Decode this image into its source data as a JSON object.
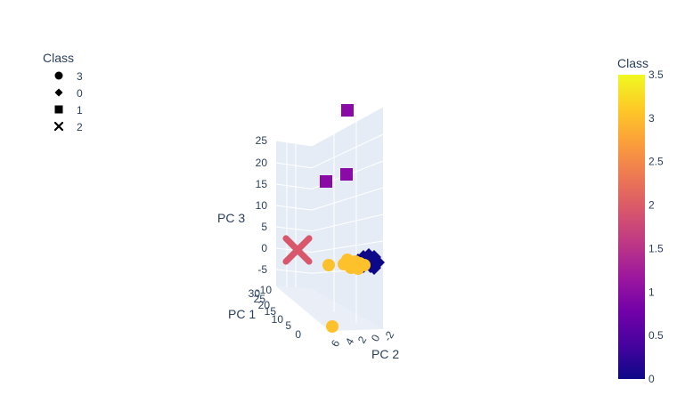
{
  "chart_data": {
    "type": "scatter3d",
    "legend": {
      "title": "Class",
      "placement": "top-left",
      "entries": [
        {
          "label": "3",
          "symbol": "circle"
        },
        {
          "label": "0",
          "symbol": "diamond"
        },
        {
          "label": "1",
          "symbol": "square"
        },
        {
          "label": "2",
          "symbol": "x"
        }
      ]
    },
    "colorbar": {
      "title": "Class",
      "range": [
        0,
        3.5
      ],
      "ticks": [
        "3.5",
        "3",
        "2.5",
        "2",
        "1.5",
        "1",
        "0.5",
        "0"
      ],
      "colors": [
        "#0d0887",
        "#46039f",
        "#7201a8",
        "#9c179e",
        "#bd3786",
        "#d8576b",
        "#ed7953",
        "#fb9f3a",
        "#fdca26",
        "#f0f921"
      ]
    },
    "axes": {
      "x": {
        "title": "PC 1",
        "ticks": [
          "-10",
          "30",
          "25",
          "20",
          "15",
          "10",
          "5",
          "0"
        ]
      },
      "y": {
        "title": "PC 2",
        "ticks": [
          "6",
          "4",
          "2",
          "0",
          "-2"
        ]
      },
      "z": {
        "title": "PC 3",
        "ticks": [
          "25",
          "20",
          "15",
          "10",
          "5",
          "0",
          "-5"
        ]
      }
    },
    "series": [
      {
        "class": 1,
        "symbol": "square",
        "color": "#8a0aa5",
        "points": [
          {
            "z": 27.5
          },
          {
            "z": 16
          },
          {
            "z": 17
          }
        ]
      },
      {
        "class": 2,
        "symbol": "x",
        "color": "#d8576b",
        "points": [
          {
            "z": -0.5
          }
        ]
      },
      {
        "class": 3,
        "symbol": "circle",
        "color": "#fdc12b",
        "points": [
          {
            "z": -3.5
          },
          {
            "z": -2.5
          },
          {
            "z": -3
          },
          {
            "z": -3.2
          },
          {
            "z": -3.6
          },
          {
            "z": -18
          }
        ]
      },
      {
        "class": 0,
        "symbol": "diamond",
        "color": "#0d0887",
        "points": [
          {
            "z": -3
          }
        ]
      }
    ]
  }
}
